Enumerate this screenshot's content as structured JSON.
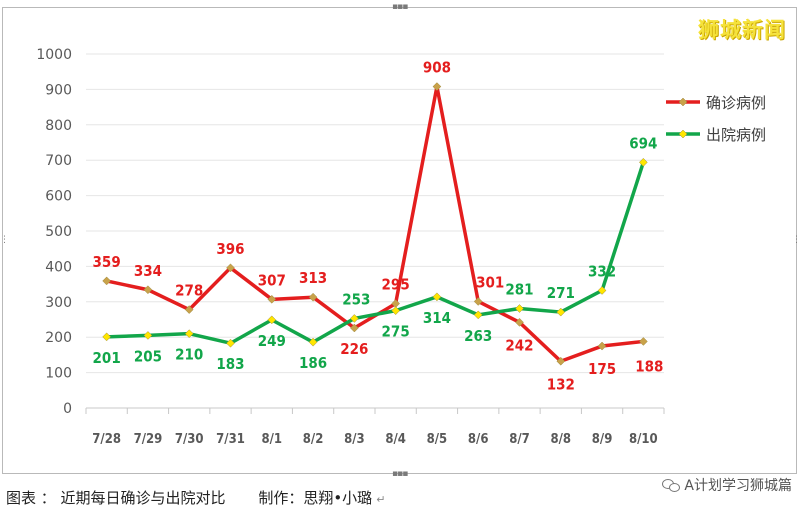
{
  "chart_data": {
    "type": "line",
    "categories": [
      "7/28",
      "7/29",
      "7/30",
      "7/31",
      "8/1",
      "8/2",
      "8/3",
      "8/4",
      "8/5",
      "8/6",
      "8/7",
      "8/8",
      "8/9",
      "8/10"
    ],
    "series": [
      {
        "name": "确诊病例",
        "color": "#e41e1e",
        "marker": "#c9a24a",
        "values": [
          359,
          334,
          278,
          396,
          307,
          313,
          226,
          295,
          908,
          301,
          242,
          132,
          175,
          188
        ]
      },
      {
        "name": "出院病例",
        "color": "#12a64a",
        "marker": "#ffe600",
        "values": [
          201,
          205,
          210,
          183,
          249,
          186,
          253,
          275,
          314,
          263,
          281,
          271,
          332,
          694
        ]
      }
    ],
    "ylim": [
      0,
      1000
    ],
    "yticks": [
      0,
      100,
      200,
      300,
      400,
      500,
      600,
      700,
      800,
      900,
      1000
    ],
    "grid": true,
    "legend_position": "right",
    "title": "",
    "xlabel": "",
    "ylabel": ""
  },
  "watermark": "狮城新闻",
  "caption": {
    "label": "图表 ： 近期每日确诊与出院对比",
    "author": "制作：思翔•小璐",
    "return_mark": "↵"
  },
  "footer_brand": "A计划学习狮城篇"
}
